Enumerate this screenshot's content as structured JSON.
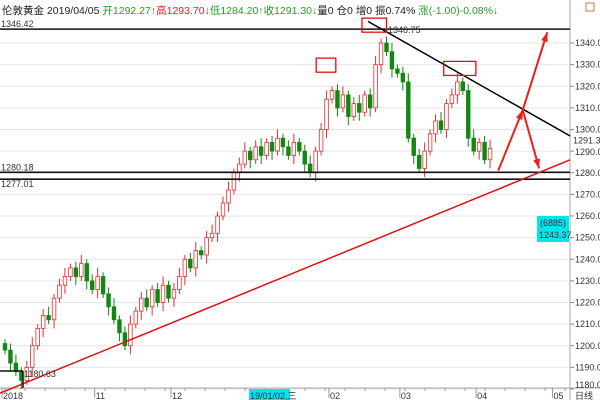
{
  "header": {
    "name": "伦敦黄金",
    "date": "2019/04/05",
    "open": "开1292.27↑",
    "high": "高1293.70↓",
    "low": "低1284.20↑",
    "close": "收1291.30↓",
    "volume": "量0",
    "position": "仓0",
    "increase": "增0",
    "amplitude": "振0.74%",
    "change": "涨(-1.00)-0.08%↓"
  },
  "chart_data": {
    "type": "candlestick",
    "ylim": [
      1178,
      1352
    ],
    "y_ticks": [
      1180,
      1190,
      1200,
      1210,
      1220,
      1230,
      1240,
      1250,
      1260,
      1270,
      1280,
      1290,
      1300,
      1310,
      1320,
      1330,
      1340
    ],
    "y_tick_labels": [
      "1180.00",
      "1190.00",
      "1200.00",
      "1210.00",
      "1220.00",
      "1230.00",
      "1240.00",
      "1250.00",
      "1260.00",
      "1270.00",
      "1280.00",
      "1290.00",
      "1300.00",
      "1310.00",
      "1320.00",
      "1330.00",
      "1340.00"
    ],
    "x_ticks": [
      {
        "label": "2018",
        "bar": 0
      },
      {
        "label": "11",
        "bar": 17
      },
      {
        "label": "12",
        "bar": 31
      },
      {
        "label": "02",
        "bar": 60
      },
      {
        "label": "03",
        "bar": 73
      },
      {
        "label": "04",
        "bar": 87
      },
      {
        "label": "05",
        "bar": 101
      }
    ],
    "cursor_date": "19/01/02,三",
    "period": "日线",
    "closes": [
      1198,
      1192,
      1188,
      1184,
      1190,
      1200,
      1208,
      1214,
      1212,
      1222,
      1228,
      1232,
      1236,
      1232,
      1238,
      1230,
      1226,
      1232,
      1224,
      1218,
      1212,
      1206,
      1200,
      1210,
      1216,
      1222,
      1218,
      1226,
      1220,
      1228,
      1222,
      1226,
      1232,
      1240,
      1236,
      1244,
      1242,
      1250,
      1252,
      1260,
      1266,
      1272,
      1280,
      1284,
      1290,
      1286,
      1292,
      1288,
      1294,
      1290,
      1296,
      1292,
      1288,
      1294,
      1290,
      1284,
      1280,
      1290,
      1300,
      1314,
      1318,
      1310,
      1316,
      1306,
      1312,
      1308,
      1316,
      1310,
      1330,
      1340,
      1336,
      1328,
      1326,
      1322,
      1296,
      1288,
      1282,
      1290,
      1298,
      1304,
      1300,
      1312,
      1316,
      1322,
      1318,
      1296,
      1290,
      1294,
      1286,
      1291.3
    ],
    "horizontal_lines": [
      {
        "price": 1346.42,
        "label": "1346.42"
      },
      {
        "price": 1280.18,
        "label": "1280.18"
      },
      {
        "price": 1277.01,
        "label": "1277.01"
      }
    ],
    "annotations": {
      "peak_label": "1346.75",
      "low_label": "1180.63",
      "last_price": "1291.30",
      "cursor_count": "(6885)",
      "cursor_price": "1243.37"
    },
    "trend_lines": [
      {
        "color": "#000000",
        "from": [
          66.6,
          1350
        ],
        "to": [
          103.7,
          1297
        ]
      },
      {
        "color": "#e01010",
        "from": [
          -1,
          1178
        ],
        "to": [
          103.7,
          1286
        ]
      }
    ],
    "arrows": [
      {
        "from": [
          90.5,
          1281
        ],
        "to": [
          95,
          1309
        ]
      },
      {
        "from": [
          95,
          1309
        ],
        "to": [
          99.5,
          1345
        ]
      },
      {
        "from": [
          95,
          1309
        ],
        "to": [
          98,
          1282
        ]
      }
    ],
    "boxes": [
      {
        "bars": [
          57.1,
          60.7
        ],
        "prices": [
          1333,
          1326.5
        ]
      },
      {
        "bars": [
          65.5,
          70
        ],
        "prices": [
          1351.5,
          1345
        ]
      },
      {
        "bars": [
          80.5,
          86.4
        ],
        "prices": [
          1331.5,
          1325
        ]
      }
    ],
    "colors": {
      "up": "#e03030",
      "down": "#118811",
      "cursor": "#00e5ee",
      "arrow": "#ee1c1c",
      "period": "#e06020"
    }
  }
}
